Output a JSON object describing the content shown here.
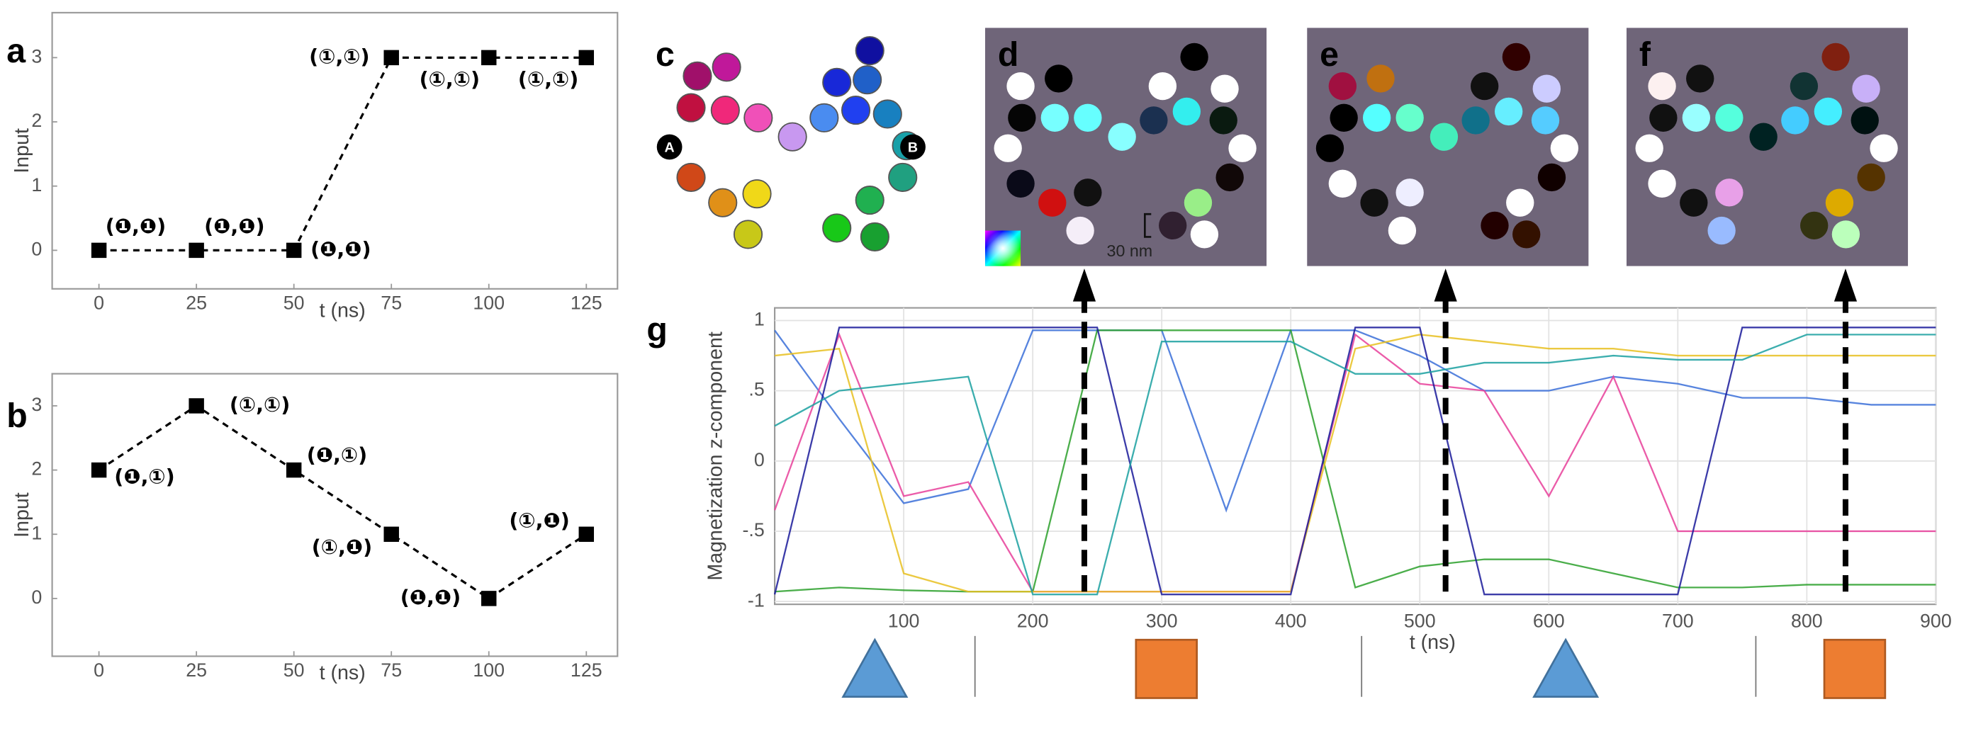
{
  "chart_data": [
    {
      "type": "line",
      "panel": "a",
      "ylabel": "Input",
      "xlabel": "t (ns)",
      "x": [
        0,
        25,
        50,
        75,
        100,
        125
      ],
      "values": [
        0,
        0,
        0,
        3,
        3,
        3
      ],
      "point_labels": [
        "(❶,❶)",
        "(❶,❶)",
        "(❶,❶)",
        "(①,①)",
        "(①,①)",
        "(①,①)"
      ],
      "color": "#000000",
      "xlim": [
        -12,
        133
      ],
      "ylim": [
        -0.6,
        3.7
      ],
      "xticks": [
        0,
        25,
        50,
        75,
        100,
        125
      ],
      "yticks": [
        0,
        1,
        2,
        3
      ]
    },
    {
      "type": "line",
      "panel": "b",
      "ylabel": "Input",
      "xlabel": "t (ns)",
      "x": [
        0,
        25,
        50,
        75,
        100,
        125
      ],
      "values": [
        2,
        3,
        2,
        1,
        0,
        1
      ],
      "point_labels": [
        "(❶,①)",
        "(①,①)",
        "(❶,①)",
        "(①,❶)",
        "(❶,❶)",
        "(①,❶)"
      ],
      "color": "#000000",
      "xlim": [
        -12,
        133
      ],
      "ylim": [
        -0.9,
        3.5
      ],
      "xticks": [
        0,
        25,
        50,
        75,
        100,
        125
      ],
      "yticks": [
        0,
        1,
        2,
        3
      ]
    },
    {
      "type": "line",
      "panel": "g",
      "ylabel": "Magnetization z-component",
      "xlabel": "t (ns)",
      "x": [
        0,
        50,
        100,
        150,
        200,
        250,
        300,
        350,
        400,
        450,
        500,
        550,
        600,
        650,
        700,
        750,
        800,
        850,
        900
      ],
      "series": [
        {
          "color": "#3a6fd8",
          "values": [
            0.93,
            0.3,
            -0.3,
            -0.2,
            0.93,
            0.93,
            0.93,
            -0.35,
            0.93,
            0.93,
            0.75,
            0.5,
            0.5,
            0.6,
            0.55,
            0.45,
            0.45,
            0.4,
            0.4
          ]
        },
        {
          "color": "#e8409a",
          "values": [
            -0.35,
            0.9,
            -0.25,
            -0.15,
            -0.93,
            -0.93,
            -0.93,
            -0.93,
            -0.93,
            0.9,
            0.55,
            0.5,
            -0.25,
            0.6,
            -0.5,
            -0.5,
            -0.5,
            -0.5,
            -0.5
          ]
        },
        {
          "color": "#2ca02c",
          "values": [
            -0.93,
            -0.9,
            -0.92,
            -0.93,
            -0.93,
            0.93,
            0.93,
            0.93,
            0.93,
            -0.9,
            -0.75,
            -0.7,
            -0.7,
            -0.8,
            -0.9,
            -0.9,
            -0.88,
            -0.88,
            -0.88
          ]
        },
        {
          "color": "#e8c020",
          "values": [
            0.75,
            0.8,
            -0.8,
            -0.93,
            -0.93,
            -0.93,
            -0.93,
            -0.93,
            -0.93,
            0.8,
            0.9,
            0.85,
            0.8,
            0.8,
            0.75,
            0.75,
            0.75,
            0.75,
            0.75
          ]
        },
        {
          "color": "#1a1a9a",
          "values": [
            -0.95,
            0.95,
            0.95,
            0.95,
            0.95,
            0.95,
            -0.95,
            -0.95,
            -0.95,
            0.95,
            0.95,
            -0.95,
            -0.95,
            -0.95,
            -0.95,
            0.95,
            0.95,
            0.95,
            0.95
          ]
        },
        {
          "color": "#1aa0a0",
          "values": [
            0.25,
            0.5,
            0.55,
            0.6,
            -0.95,
            -0.95,
            0.85,
            0.85,
            0.85,
            0.62,
            0.62,
            0.7,
            0.7,
            0.75,
            0.72,
            0.72,
            0.9,
            0.9,
            0.9
          ]
        }
      ],
      "xlim": [
        0,
        900
      ],
      "ylim": [
        -1.02,
        1.09
      ],
      "xticks": [
        100,
        200,
        300,
        400,
        500,
        600,
        700,
        800,
        900
      ],
      "yticks": [
        1,
        {
          "value": 0.5,
          "label": ".5"
        },
        0,
        {
          "value": -0.5,
          "label": "-.5"
        },
        -1
      ],
      "grid": true,
      "snapshot_times": [
        240,
        520,
        830
      ]
    }
  ],
  "diagrams": [
    {
      "panel": "c",
      "labels": [
        "A",
        "B"
      ]
    },
    {
      "panel": "d",
      "scale_bar": "30 nm"
    },
    {
      "panel": "e"
    },
    {
      "panel": "f"
    }
  ]
}
